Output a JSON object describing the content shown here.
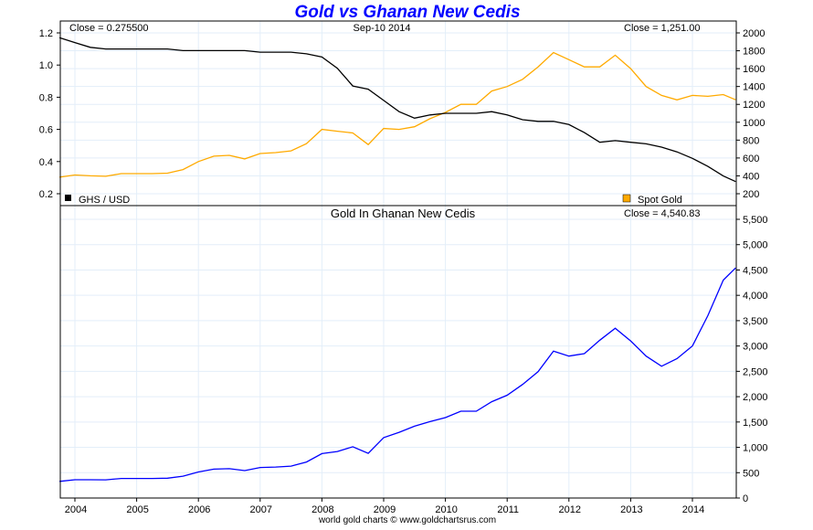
{
  "chart_data": [
    {
      "type": "line",
      "title": "Gold vs Ghanan New Cedis",
      "date_label": "Sep-10  2014",
      "left_close_label": "Close = 0.275500",
      "right_close_label": "Close = 1,251.00",
      "x_ticks": [
        "2004",
        "2005",
        "2006",
        "2007",
        "2008",
        "2009",
        "2010",
        "2011",
        "2012",
        "2013",
        "2014"
      ],
      "left_axis": {
        "range": [
          0.15,
          1.25
        ],
        "ticks": [
          "0.2",
          "0.4",
          "0.6",
          "0.8",
          "1.0",
          "1.2"
        ]
      },
      "right_axis": {
        "range": [
          150,
          2050
        ],
        "ticks": [
          "200",
          "400",
          "600",
          "800",
          "1000",
          "1200",
          "1400",
          "1600",
          "1800",
          "2000"
        ]
      },
      "grid": true,
      "x": [
        2003.75,
        2004.0,
        2004.25,
        2004.5,
        2004.75,
        2005.0,
        2005.25,
        2005.5,
        2005.75,
        2006.0,
        2006.25,
        2006.5,
        2006.75,
        2007.0,
        2007.25,
        2007.5,
        2007.75,
        2008.0,
        2008.25,
        2008.5,
        2008.75,
        2009.0,
        2009.25,
        2009.5,
        2009.75,
        2010.0,
        2010.25,
        2010.5,
        2010.75,
        2011.0,
        2011.25,
        2011.5,
        2011.75,
        2012.0,
        2012.25,
        2012.5,
        2012.75,
        2013.0,
        2013.25,
        2013.5,
        2013.75,
        2014.0,
        2014.25,
        2014.5,
        2014.7
      ],
      "series": [
        {
          "name": "GHS / USD",
          "axis": "left",
          "color": "#000000",
          "values": [
            1.17,
            1.14,
            1.11,
            1.1,
            1.1,
            1.1,
            1.1,
            1.1,
            1.09,
            1.09,
            1.09,
            1.09,
            1.09,
            1.08,
            1.08,
            1.08,
            1.07,
            1.05,
            0.98,
            0.87,
            0.85,
            0.78,
            0.71,
            0.67,
            0.69,
            0.7,
            0.7,
            0.7,
            0.71,
            0.69,
            0.66,
            0.65,
            0.65,
            0.63,
            0.58,
            0.52,
            0.53,
            0.52,
            0.51,
            0.49,
            0.46,
            0.42,
            0.37,
            0.31,
            0.2755
          ]
        },
        {
          "name": "Spot Gold",
          "axis": "right",
          "color": "#ffaa00",
          "values": [
            385,
            410,
            400,
            395,
            425,
            425,
            425,
            430,
            470,
            560,
            620,
            630,
            590,
            650,
            660,
            680,
            760,
            920,
            900,
            880,
            750,
            930,
            920,
            950,
            1040,
            1110,
            1200,
            1200,
            1350,
            1400,
            1480,
            1620,
            1780,
            1700,
            1620,
            1620,
            1750,
            1600,
            1400,
            1300,
            1250,
            1300,
            1290,
            1310,
            1251
          ]
        }
      ],
      "legend": "bottom"
    },
    {
      "type": "line",
      "title": "Gold In Ghanan New Cedis",
      "close_label": "Close = 4,540.83",
      "right_axis": {
        "range": [
          0,
          5500
        ],
        "ticks": [
          "0",
          "500",
          "1,000",
          "1,500",
          "2,000",
          "2,500",
          "3,000",
          "3,500",
          "4,000",
          "4,500",
          "5,000",
          "5,500"
        ]
      },
      "grid": true,
      "x": [
        2003.75,
        2004.0,
        2004.25,
        2004.5,
        2004.75,
        2005.0,
        2005.25,
        2005.5,
        2005.75,
        2006.0,
        2006.25,
        2006.5,
        2006.75,
        2007.0,
        2007.25,
        2007.5,
        2007.75,
        2008.0,
        2008.25,
        2008.5,
        2008.75,
        2009.0,
        2009.25,
        2009.5,
        2009.75,
        2010.0,
        2010.25,
        2010.5,
        2010.75,
        2011.0,
        2011.25,
        2011.5,
        2011.75,
        2012.0,
        2012.25,
        2012.5,
        2012.75,
        2013.0,
        2013.25,
        2013.5,
        2013.75,
        2014.0,
        2014.25,
        2014.5,
        2014.7
      ],
      "series": [
        {
          "color": "#0000ff",
          "values": [
            329,
            360,
            360,
            359,
            386,
            386,
            386,
            391,
            431,
            514,
            569,
            578,
            541,
            602,
            611,
            630,
            710,
            876,
            918,
            1011,
            882,
            1192,
            1296,
            1418,
            1507,
            1586,
            1714,
            1714,
            1901,
            2029,
            2242,
            2492,
            2900,
            2800,
            2850,
            3115,
            3350,
            3100,
            2800,
            2600,
            2750,
            3000,
            3600,
            4300,
            4541
          ]
        }
      ]
    }
  ],
  "footer": "world gold charts © www.goldchartsrus.com"
}
